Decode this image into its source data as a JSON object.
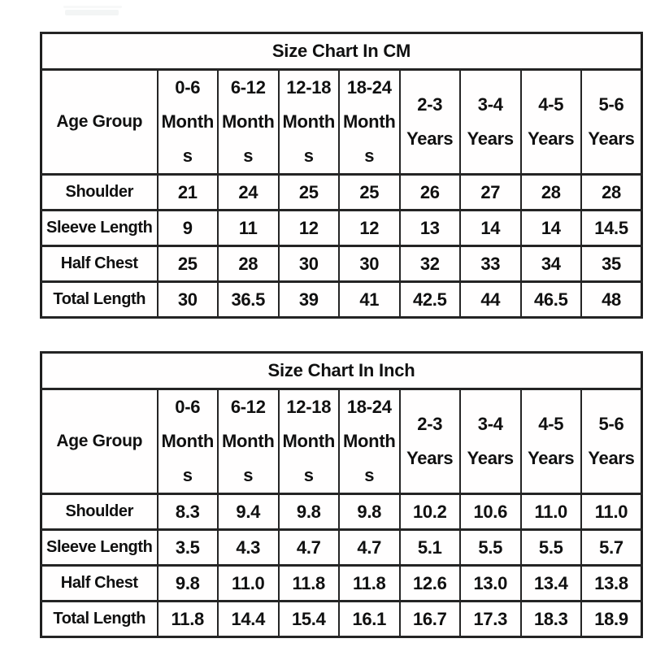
{
  "page": {
    "background": "#ffffff",
    "text_color": "#101010",
    "border_color": "#242424"
  },
  "chart_data": [
    {
      "type": "table",
      "title": "Size Chart In CM",
      "unit": "cm",
      "corner_label": "Age Group",
      "columns": [
        {
          "label": "0-6 Months",
          "lines": "0-6\nMonth\ns"
        },
        {
          "label": "6-12 Months",
          "lines": "6-12\nMonth\ns"
        },
        {
          "label": "12-18 Months",
          "lines": "12-18\nMonth\ns"
        },
        {
          "label": "18-24 Months",
          "lines": "18-24\nMonth\ns"
        },
        {
          "label": "2-3 Years",
          "lines": "2-3\nYears"
        },
        {
          "label": "3-4 Years",
          "lines": "3-4\nYears"
        },
        {
          "label": "4-5 Years",
          "lines": "4-5\nYears"
        },
        {
          "label": "5-6 Years",
          "lines": "5-6\nYears"
        }
      ],
      "rows": [
        {
          "label": "Shoulder",
          "values": [
            "21",
            "24",
            "25",
            "25",
            "26",
            "27",
            "28",
            "28"
          ]
        },
        {
          "label": "Sleeve Length",
          "values": [
            "9",
            "11",
            "12",
            "12",
            "13",
            "14",
            "14",
            "14.5"
          ]
        },
        {
          "label": "Half Chest",
          "values": [
            "25",
            "28",
            "30",
            "30",
            "32",
            "33",
            "34",
            "35"
          ]
        },
        {
          "label": "Total Length",
          "values": [
            "30",
            "36.5",
            "39",
            "41",
            "42.5",
            "44",
            "46.5",
            "48"
          ]
        }
      ]
    },
    {
      "type": "table",
      "title": "Size Chart In Inch",
      "unit": "inch",
      "corner_label": "Age Group",
      "columns": [
        {
          "label": "0-6 Months",
          "lines": "0-6\nMonth\ns"
        },
        {
          "label": "6-12 Months",
          "lines": "6-12\nMonth\ns"
        },
        {
          "label": "12-18 Months",
          "lines": "12-18\nMonth\ns"
        },
        {
          "label": "18-24 Months",
          "lines": "18-24\nMonth\ns"
        },
        {
          "label": "2-3 Years",
          "lines": "2-3\nYears"
        },
        {
          "label": "3-4 Years",
          "lines": "3-4\nYears"
        },
        {
          "label": "4-5 Years",
          "lines": "4-5\nYears"
        },
        {
          "label": "5-6 Years",
          "lines": "5-6\nYears"
        }
      ],
      "rows": [
        {
          "label": "Shoulder",
          "values": [
            "8.3",
            "9.4",
            "9.8",
            "9.8",
            "10.2",
            "10.6",
            "11.0",
            "11.0"
          ]
        },
        {
          "label": "Sleeve Length",
          "values": [
            "3.5",
            "4.3",
            "4.7",
            "4.7",
            "5.1",
            "5.5",
            "5.5",
            "5.7"
          ]
        },
        {
          "label": "Half Chest",
          "values": [
            "9.8",
            "11.0",
            "11.8",
            "11.8",
            "12.6",
            "13.0",
            "13.4",
            "13.8"
          ]
        },
        {
          "label": "Total Length",
          "values": [
            "11.8",
            "14.4",
            "15.4",
            "16.1",
            "16.7",
            "17.3",
            "18.3",
            "18.9"
          ]
        }
      ]
    }
  ]
}
